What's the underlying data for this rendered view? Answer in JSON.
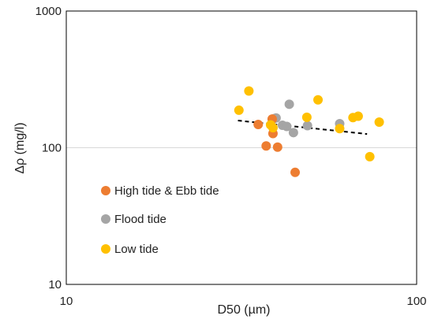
{
  "chart_data": {
    "type": "scatter",
    "xlabel": "D50 (µm)",
    "ylabel": "Δρ (mg/l)",
    "x_scale": "log",
    "y_scale": "log",
    "xlim": [
      10,
      100
    ],
    "ylim": [
      10,
      1000
    ],
    "x_ticks": [
      "10",
      "100"
    ],
    "y_ticks": [
      "10",
      "100",
      "1000"
    ],
    "gridlines": "horizontal at 100 only",
    "legend_position": "left, inside plot",
    "series": [
      {
        "name": "High tide & Ebb tide",
        "color": "#ED7D31",
        "points": [
          [
            35.3,
            148
          ],
          [
            37.2,
            103
          ],
          [
            38.7,
            162
          ],
          [
            38.9,
            127
          ],
          [
            40.1,
            101
          ],
          [
            45.0,
            66
          ]
        ]
      },
      {
        "name": "Flood tide",
        "color": "#A5A5A5",
        "points": [
          [
            39.2,
            163
          ],
          [
            39.7,
            165
          ],
          [
            41.4,
            146
          ],
          [
            42.6,
            143
          ],
          [
            43.3,
            208
          ],
          [
            44.5,
            129
          ],
          [
            48.8,
            145
          ],
          [
            60.3,
            150
          ]
        ]
      },
      {
        "name": "Low tide",
        "color": "#FFC000",
        "points": [
          [
            31.1,
            188
          ],
          [
            33.2,
            260
          ],
          [
            38.3,
            147
          ],
          [
            38.9,
            140
          ],
          [
            48.6,
            167
          ],
          [
            52.3,
            224
          ],
          [
            60.3,
            138
          ],
          [
            65.8,
            166
          ],
          [
            68.1,
            170
          ],
          [
            73.5,
            86
          ],
          [
            78.2,
            154
          ]
        ]
      }
    ],
    "trendline": {
      "style": "dashed",
      "color": "#000000",
      "points": [
        [
          30.9,
          158
        ],
        [
          72.2,
          126
        ]
      ]
    }
  }
}
